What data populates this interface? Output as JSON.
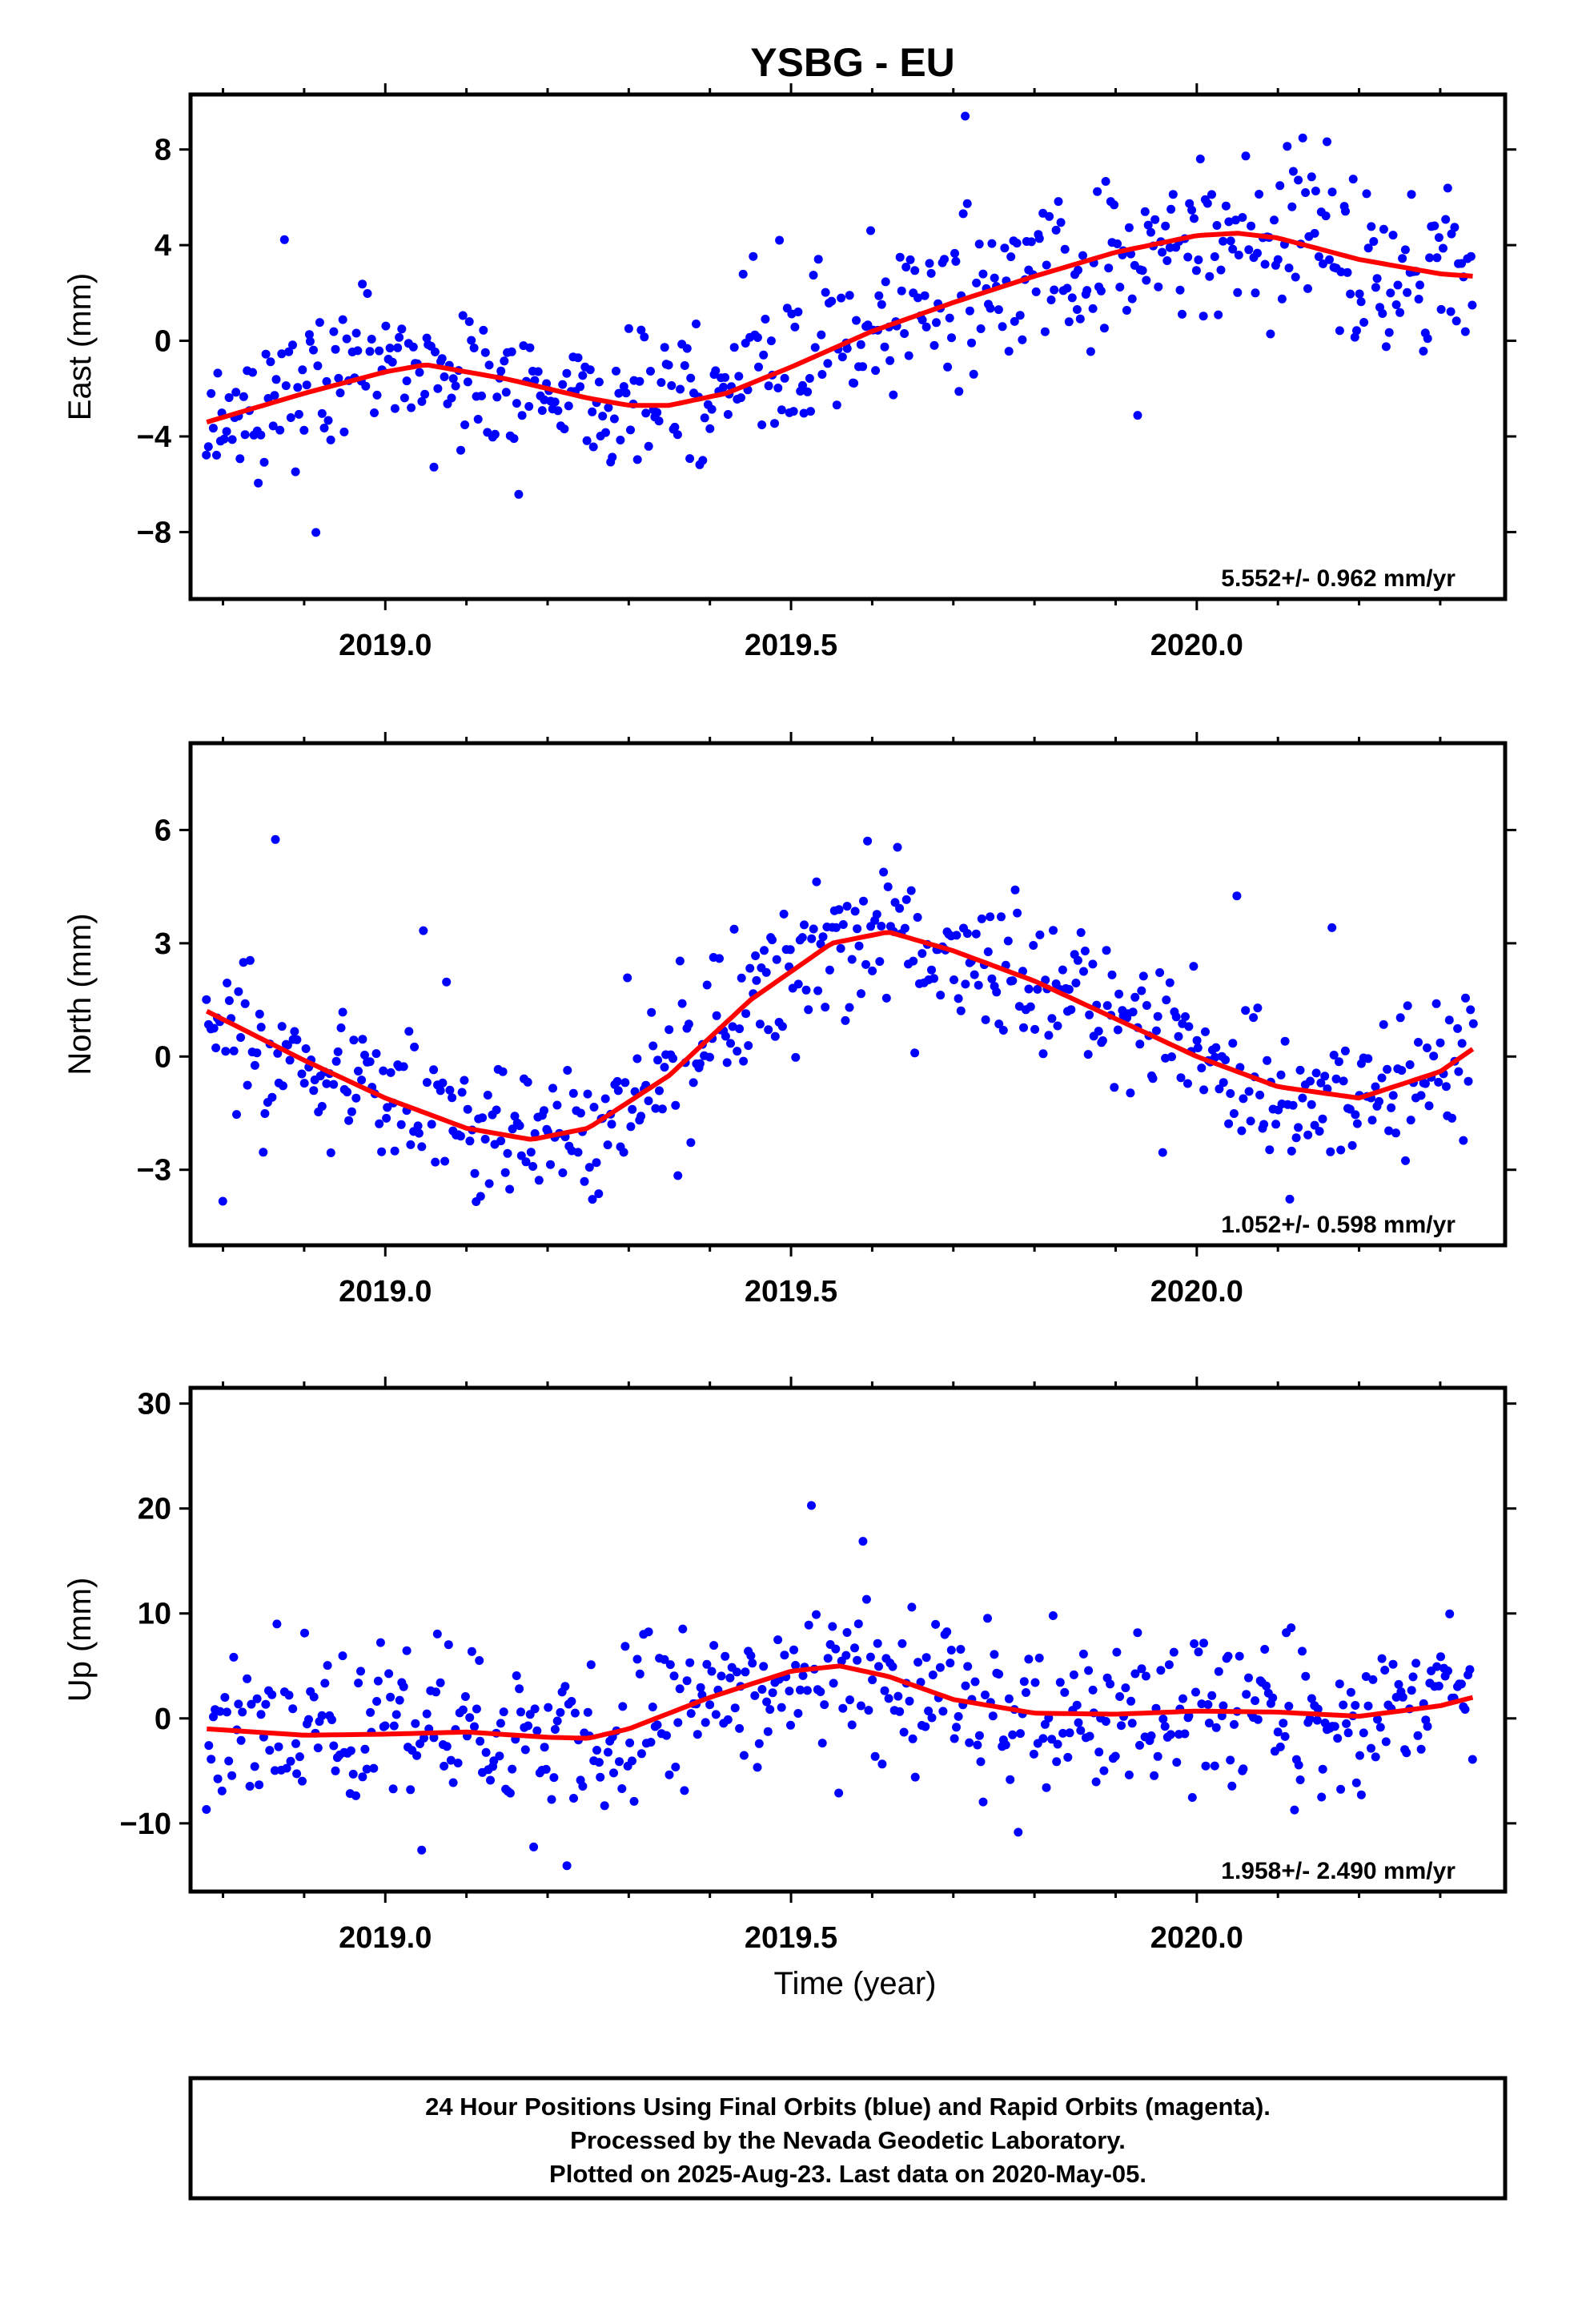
{
  "chart_data": {
    "type": "scatter",
    "title": "YSBG - EU",
    "xlabel": "Time (year)",
    "xlim": [
      2018.76,
      2020.38
    ],
    "x_ticks": [
      2019.0,
      2019.5,
      2020.0
    ],
    "x_tick_labels": [
      "2019.0",
      "2019.5",
      "2020.0"
    ],
    "panels": [
      {
        "name": "east",
        "ylabel": "East (mm)",
        "ylim": [
          -10.8,
          10.3
        ],
        "y_ticks": [
          -8,
          -4,
          0,
          4,
          8
        ],
        "y_tick_labels": [
          "-8",
          "-4",
          "0",
          "4",
          "8"
        ],
        "rate_label": "5.552+/- 0.962 mm/yr",
        "model": {
          "x": [
            2018.78,
            2018.9,
            2019.0,
            2019.05,
            2019.15,
            2019.25,
            2019.3,
            2019.35,
            2019.42,
            2019.5,
            2019.6,
            2019.7,
            2019.8,
            2019.9,
            2020.0,
            2020.05,
            2020.1,
            2020.2,
            2020.3,
            2020.34
          ],
          "y": [
            -3.4,
            -2.2,
            -1.3,
            -1.0,
            -1.6,
            -2.4,
            -2.7,
            -2.7,
            -2.2,
            -1.1,
            0.4,
            1.6,
            2.7,
            3.7,
            4.4,
            4.5,
            4.3,
            3.4,
            2.8,
            2.7
          ]
        },
        "scatter": {
          "noise": 1.5,
          "outlier_rate": 0.06,
          "outlier_scale": 3.0,
          "seed": 11
        }
      },
      {
        "name": "north",
        "ylabel": "North (mm)",
        "ylim": [
          -5.0,
          8.3
        ],
        "y_ticks": [
          -3,
          0,
          3,
          6
        ],
        "y_tick_labels": [
          "-3",
          "0",
          "3",
          "6"
        ],
        "rate_label": "1.052+/- 0.598 mm/yr",
        "model": {
          "x": [
            2018.78,
            2018.9,
            2019.0,
            2019.1,
            2019.18,
            2019.25,
            2019.35,
            2019.45,
            2019.55,
            2019.62,
            2019.7,
            2019.8,
            2019.9,
            2020.0,
            2020.1,
            2020.2,
            2020.3,
            2020.34
          ],
          "y": [
            1.2,
            -0.1,
            -1.1,
            -1.9,
            -2.2,
            -1.9,
            -0.5,
            1.5,
            3.0,
            3.3,
            2.8,
            2.0,
            1.0,
            0.0,
            -0.8,
            -1.1,
            -0.4,
            0.2
          ]
        },
        "scatter": {
          "noise": 0.9,
          "outlier_rate": 0.06,
          "outlier_scale": 3.0,
          "seed": 23
        }
      },
      {
        "name": "up",
        "ylabel": "Up (mm)",
        "ylim": [
          -16.5,
          31.5
        ],
        "y_ticks": [
          -10,
          0,
          10,
          20,
          30
        ],
        "y_tick_labels": [
          "-10",
          "0",
          "10",
          "20",
          "30"
        ],
        "rate_label": "1.958+/- 2.490 mm/yr",
        "model": {
          "x": [
            2018.78,
            2018.9,
            2019.0,
            2019.1,
            2019.2,
            2019.25,
            2019.3,
            2019.4,
            2019.5,
            2019.56,
            2019.62,
            2019.7,
            2019.8,
            2019.9,
            2020.0,
            2020.1,
            2020.2,
            2020.3,
            2020.34
          ],
          "y": [
            -1.0,
            -1.6,
            -1.5,
            -1.3,
            -1.8,
            -1.9,
            -1.0,
            2.0,
            4.5,
            5.0,
            4.0,
            1.8,
            0.5,
            0.4,
            0.7,
            0.6,
            0.2,
            1.2,
            2.0
          ]
        },
        "scatter": {
          "noise": 3.5,
          "outlier_rate": 0.07,
          "outlier_scale": 3.0,
          "seed": 37
        }
      }
    ],
    "colors": {
      "final_orbits": "#0000ff",
      "rapid_orbits": "#ff00ff",
      "model_curve": "#ff0000",
      "frame": "#000000"
    }
  },
  "footer": {
    "line1": "24 Hour Positions Using Final Orbits (blue) and Rapid Orbits (magenta).",
    "line2": "Processed by the Nevada Geodetic Laboratory.",
    "line3": "Plotted on 2025-Aug-23. Last data on 2020-May-05."
  }
}
